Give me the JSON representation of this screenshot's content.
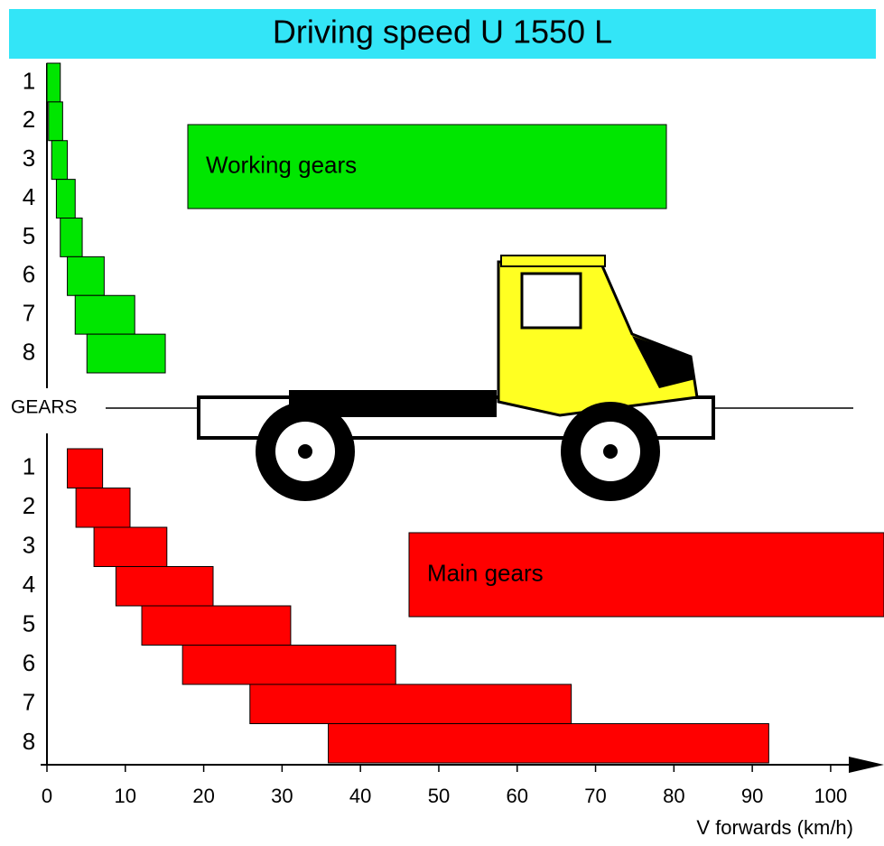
{
  "chart_data": {
    "type": "range-bar",
    "title": "Driving speed U 1550 L",
    "categories": [
      "1",
      "2",
      "3",
      "4",
      "5",
      "6",
      "7",
      "8"
    ],
    "center_label": "GEARS",
    "x_label": "V forwards (km/h)",
    "series": [
      {
        "name": "Working gears",
        "color": "#00e600",
        "start": [
          0,
          0.2,
          0.6,
          1.2,
          1.7,
          2.6,
          3.6,
          5.1
        ],
        "end": [
          1.7,
          2,
          2.6,
          3.6,
          4.5,
          7.3,
          11.2,
          15.1
        ]
      },
      {
        "name": "Main gears",
        "color": "#ff0000",
        "start": [
          2.6,
          3.7,
          6,
          8.8,
          12.1,
          17.3,
          25.9,
          35.9
        ],
        "end": [
          7.1,
          10.6,
          15.3,
          21.2,
          31.1,
          44.5,
          66.9,
          92.1
        ]
      }
    ],
    "xlim": [
      0,
      106
    ],
    "xticks": [
      0,
      10,
      20,
      30,
      40,
      50,
      60,
      70,
      80,
      90,
      100
    ]
  }
}
